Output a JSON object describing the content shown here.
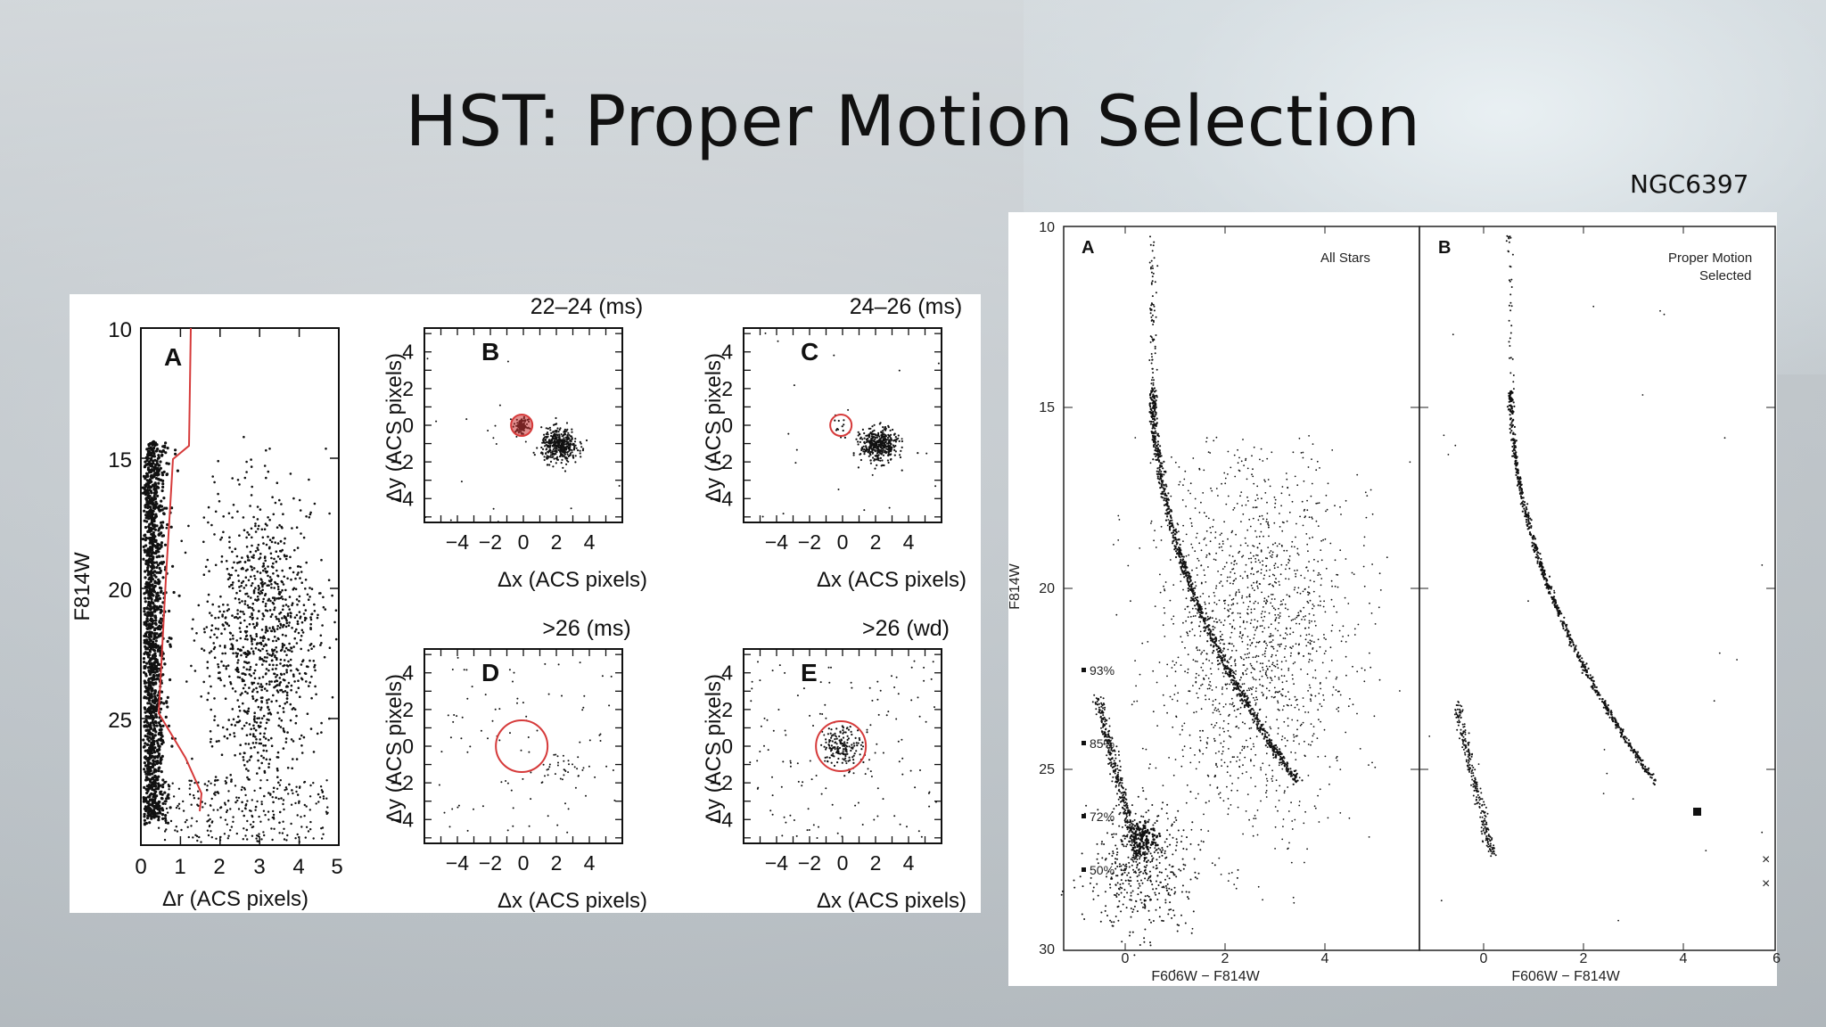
{
  "slide": {
    "title": "HST: Proper Motion Selection",
    "corner_label": "NGC6397"
  },
  "left_figure": {
    "panel_a": {
      "letter": "A",
      "ylabel": "F814W",
      "xlabel": "Δr (ACS pixels)",
      "xticks": [
        "0",
        "1",
        "2",
        "3",
        "4",
        "5"
      ],
      "yticks": [
        "10",
        "15",
        "20",
        "25"
      ]
    },
    "small_panels": [
      {
        "letter": "B",
        "title": "22–24 (ms)"
      },
      {
        "letter": "C",
        "title": "24–26 (ms)"
      },
      {
        "letter": "D",
        "title": ">26 (ms)"
      },
      {
        "letter": "E",
        "title": ">26 (wd)"
      }
    ],
    "small_axes": {
      "xlabel": "Δx (ACS pixels)",
      "ylabel": "Δy (ACS pixels)",
      "xticks": [
        "−4",
        "−2",
        "0",
        "2",
        "4"
      ],
      "yticks": [
        "4",
        "2",
        "0",
        "−2",
        "−4"
      ]
    }
  },
  "right_figure": {
    "panels": [
      {
        "letter": "A",
        "note": "All Stars"
      },
      {
        "letter": "B",
        "note": "Proper Motion Selected"
      }
    ],
    "ylabel": "F814W",
    "xlabel": "F606W − F814W",
    "yticks": [
      "10",
      "15",
      "20",
      "25",
      "30"
    ],
    "xticks_a": [
      "0",
      "2",
      "4"
    ],
    "xticks_b": [
      "0",
      "2",
      "4",
      "6"
    ],
    "completeness": [
      "93%",
      "85%",
      "72%",
      "50%"
    ]
  },
  "colors": {
    "accent_red": "#d63a3a",
    "ink": "#111111"
  }
}
